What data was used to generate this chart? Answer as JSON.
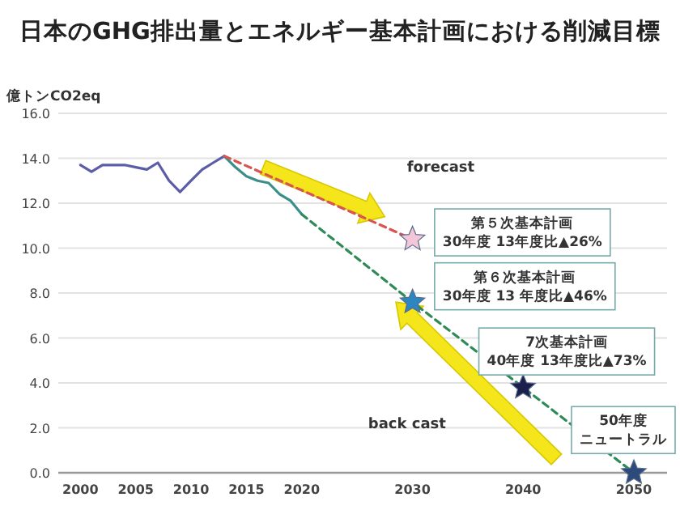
{
  "chart_data": {
    "type": "line",
    "title": "日本のGHG排出量とエネルギー基本計画における削減目標",
    "ylabel": "億トンCO2eq",
    "xlim": [
      1998,
      2053
    ],
    "xticks": [
      2000,
      2005,
      2010,
      2015,
      2020,
      2030,
      2040,
      2050
    ],
    "ylim": [
      0,
      16
    ],
    "yticks": [
      {
        "value": 0,
        "label": "0.0"
      },
      {
        "value": 2,
        "label": "2.0"
      },
      {
        "value": 4,
        "label": "4.0"
      },
      {
        "value": 6,
        "label": "6.0"
      },
      {
        "value": 8,
        "label": "8.0"
      },
      {
        "value": 10,
        "label": "10.0"
      },
      {
        "value": 12,
        "label": "12.0"
      },
      {
        "value": 14,
        "label": "14.0"
      },
      {
        "value": 16,
        "label": "16.0"
      }
    ],
    "grid": "y",
    "series": [
      {
        "color": "#5b5ea6",
        "line_style": "solid",
        "x": [
          2000,
          2001,
          2002,
          2003,
          2004,
          2005,
          2006,
          2007,
          2008,
          2009,
          2010,
          2011,
          2012,
          2013
        ],
        "values": [
          13.7,
          13.4,
          13.7,
          13.7,
          13.7,
          13.6,
          13.5,
          13.8,
          13.0,
          12.5,
          13.0,
          13.5,
          13.8,
          14.1
        ]
      },
      {
        "color": "#3a8f8a",
        "line_style": "solid",
        "x": [
          2013,
          2014,
          2015,
          2016,
          2017,
          2018,
          2019,
          2020
        ],
        "values": [
          14.1,
          13.6,
          13.2,
          13.0,
          12.9,
          12.4,
          12.1,
          11.5
        ]
      },
      {
        "color": "#d9534f",
        "line_style": "dashed",
        "x": [
          2013,
          2030
        ],
        "values": [
          14.1,
          10.4
        ]
      },
      {
        "color": "#2e8b57",
        "line_style": "dashed",
        "x": [
          2020,
          2030,
          2040,
          2050
        ],
        "values": [
          11.5,
          7.6,
          3.8,
          0
        ]
      },
      {
        "type": "scatter",
        "marker": "star",
        "x": [
          2030,
          2030,
          2040,
          2050
        ],
        "values": [
          10.4,
          7.6,
          3.8,
          0
        ],
        "colors": [
          "#f3c6d8",
          "#2e86c1",
          "#1b1f4b",
          "#2c4a7a"
        ]
      }
    ],
    "annotations": [
      "第５次基本計画",
      "30年度 13年度比▲26%",
      "第６次基本計画",
      "30年度 13 年度比▲46%",
      "7次基本計画",
      "40年度 13年度比▲73%",
      "50年度",
      "ニュートラル",
      "forecast",
      "back cast"
    ]
  }
}
